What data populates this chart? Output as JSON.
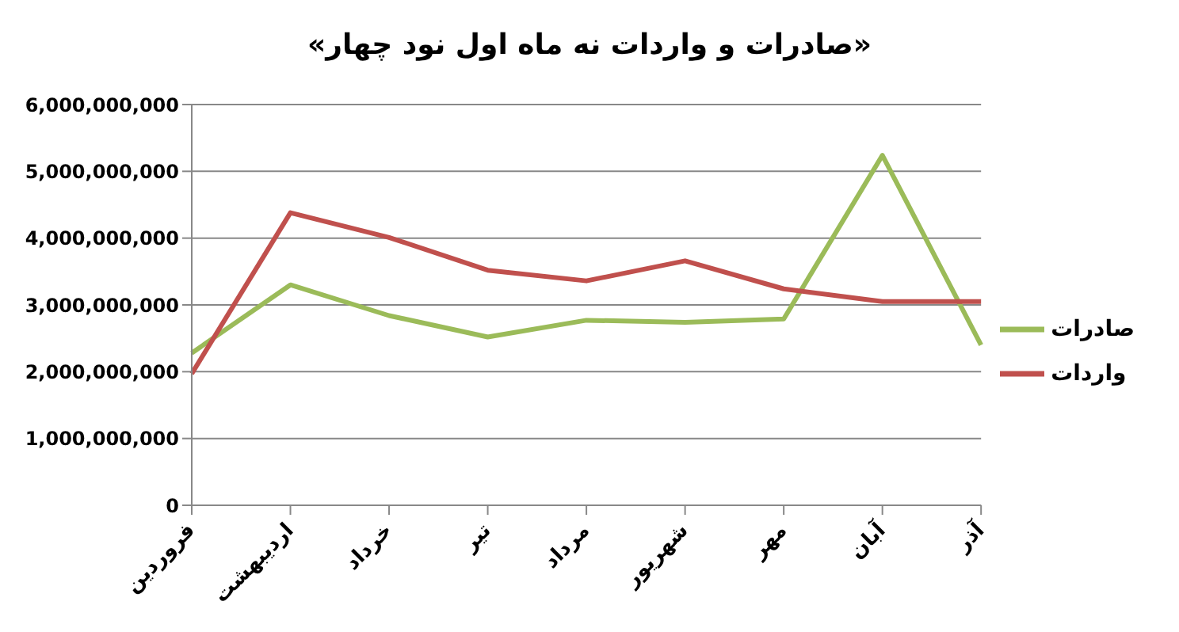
{
  "chart_data": {
    "type": "line",
    "title": "«صادرات و واردات نه ماه اول نود چهار»",
    "categories": [
      "فروردین",
      "اردیبهشت",
      "خرداد",
      "تیر",
      "مرداد",
      "شهریور",
      "مهر",
      "آبان",
      "آذر"
    ],
    "series": [
      {
        "name": "صادرات",
        "color": "#9bbb59",
        "values": [
          2280000000,
          3300000000,
          2840000000,
          2520000000,
          2770000000,
          2740000000,
          2790000000,
          5240000000,
          2400000000
        ]
      },
      {
        "name": "واردات",
        "color": "#c0504d",
        "values": [
          1970000000,
          4380000000,
          4010000000,
          3520000000,
          3360000000,
          3660000000,
          3240000000,
          3050000000,
          3050000000
        ]
      }
    ],
    "ylim": [
      0,
      6000000000
    ],
    "yticks": [
      0,
      {
        "value": 1000000000,
        "label": "1,000,000,000"
      },
      {
        "value": 2000000000,
        "label": "2,000,000,000"
      },
      {
        "value": 3000000000,
        "label": "3,000,000,000"
      },
      {
        "value": 4000000000,
        "label": "4,000,000,000"
      },
      {
        "value": 5000000000,
        "label": "5,000,000,000"
      },
      {
        "value": 6000000000,
        "label": "6,000,000,000"
      }
    ],
    "grid": "y",
    "legend": "right",
    "marker": "none",
    "line_style": "solid"
  }
}
